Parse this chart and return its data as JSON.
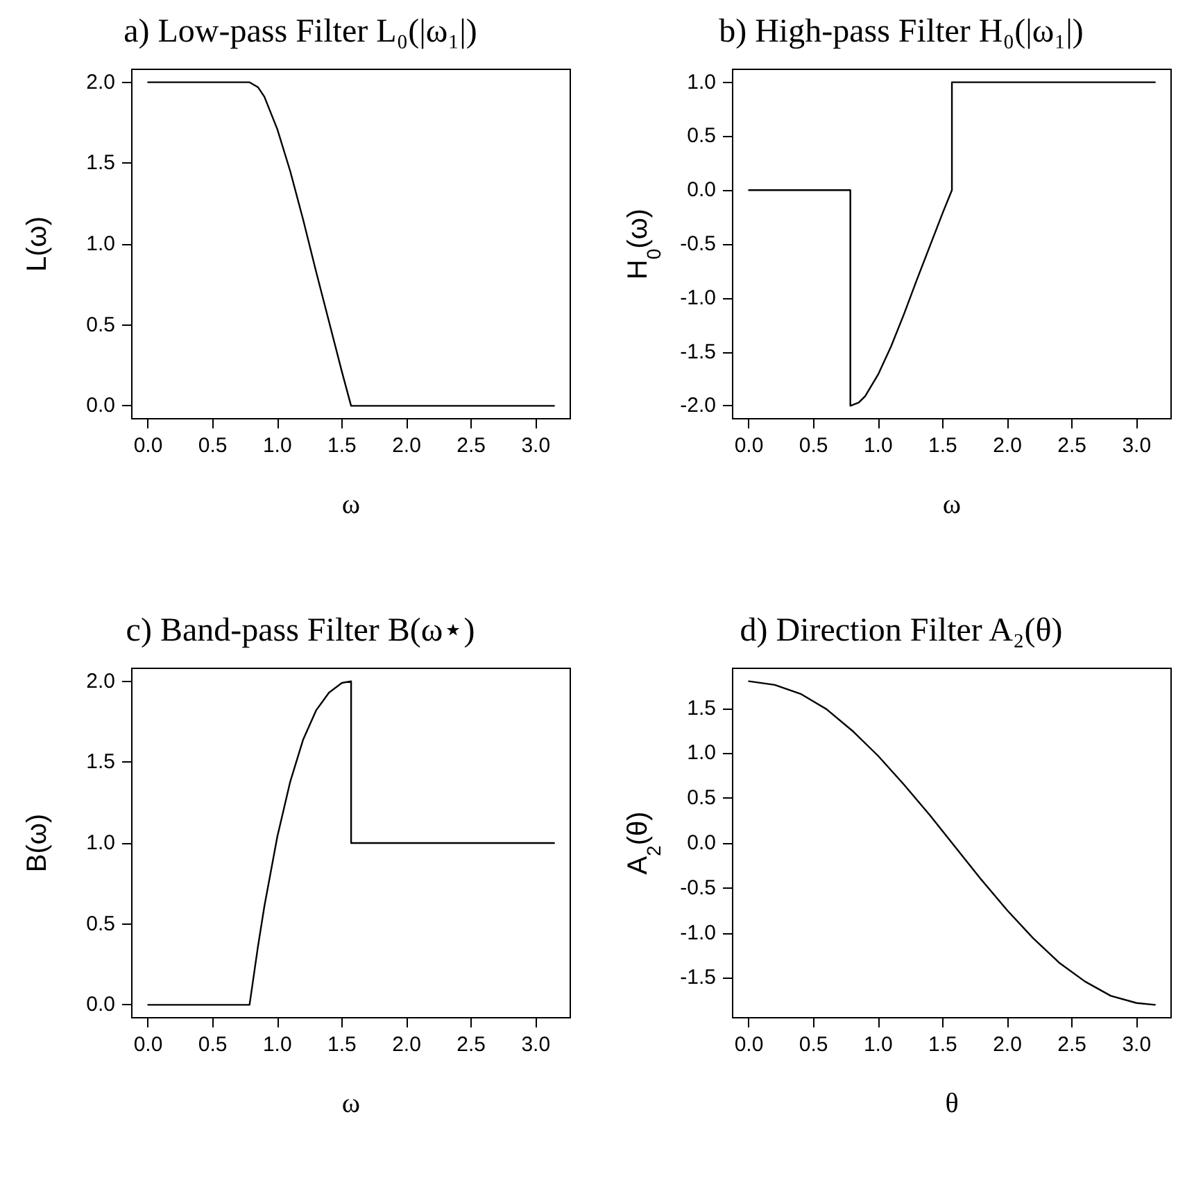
{
  "chart_data": [
    {
      "type": "line",
      "title": "a) Low-pass Filter L₀(|ω₁|)",
      "xlabel": "ω",
      "ylabel": "L(ω)",
      "x": [
        0,
        0.785,
        0.85,
        0.9,
        1.0,
        1.1,
        1.2,
        1.3,
        1.4,
        1.5,
        1.571,
        3.142
      ],
      "values": [
        2,
        2,
        1.97,
        1.91,
        1.71,
        1.45,
        1.15,
        0.83,
        0.52,
        0.21,
        0,
        0
      ],
      "color": "#000000",
      "xlim": [
        -0.126,
        3.267
      ],
      "xticks": [
        {
          "value": 0,
          "label": "0.0"
        },
        0.5,
        {
          "value": 1,
          "label": "1.0"
        },
        1.5,
        {
          "value": 2,
          "label": "2.0"
        },
        2.5,
        {
          "value": 3,
          "label": "3.0"
        }
      ],
      "ylim": [
        -0.08,
        2.08
      ],
      "yticks": [
        {
          "value": 0,
          "label": "0.0"
        },
        0.5,
        {
          "value": 1,
          "label": "1.0"
        },
        1.5,
        {
          "value": 2,
          "label": "2.0"
        }
      ],
      "grid": false,
      "marker": "none",
      "line_style": "solid"
    },
    {
      "type": "line",
      "title": "b) High-pass Filter H₀(|ω₁|)",
      "xlabel": "ω",
      "ylabel": "H$_{0}$(ω)",
      "x": [
        0,
        0.785,
        0.785,
        0.85,
        0.9,
        1.0,
        1.1,
        1.2,
        1.3,
        1.4,
        1.5,
        1.571,
        1.571,
        3.142
      ],
      "values": [
        0,
        0,
        -2,
        -1.97,
        -1.91,
        -1.71,
        -1.45,
        -1.15,
        -0.83,
        -0.52,
        -0.21,
        0,
        1,
        1
      ],
      "color": "#000000",
      "xlim": [
        -0.126,
        3.267
      ],
      "xticks": [
        {
          "value": 0,
          "label": "0.0"
        },
        0.5,
        {
          "value": 1,
          "label": "1.0"
        },
        1.5,
        {
          "value": 2,
          "label": "2.0"
        },
        2.5,
        {
          "value": 3,
          "label": "3.0"
        }
      ],
      "ylim": [
        -2.12,
        1.12
      ],
      "yticks": [
        {
          "value": -2,
          "label": "-2.0"
        },
        -1.5,
        {
          "value": -1,
          "label": "-1.0"
        },
        -0.5,
        {
          "value": 0,
          "label": "0.0"
        },
        0.5,
        {
          "value": 1,
          "label": "1.0"
        }
      ],
      "grid": false,
      "marker": "none",
      "line_style": "solid"
    },
    {
      "type": "line",
      "title": "c) Band-pass Filter B(ω⋆)",
      "xlabel": "ω",
      "ylabel": "B(ω)",
      "x": [
        0,
        0.785,
        0.85,
        0.9,
        1.0,
        1.1,
        1.2,
        1.3,
        1.4,
        1.5,
        1.571,
        1.571,
        3.142
      ],
      "values": [
        0,
        0,
        0.36,
        0.61,
        1.04,
        1.38,
        1.64,
        1.82,
        1.93,
        1.99,
        2,
        1,
        1
      ],
      "color": "#000000",
      "xlim": [
        -0.126,
        3.267
      ],
      "xticks": [
        {
          "value": 0,
          "label": "0.0"
        },
        0.5,
        {
          "value": 1,
          "label": "1.0"
        },
        1.5,
        {
          "value": 2,
          "label": "2.0"
        },
        2.5,
        {
          "value": 3,
          "label": "3.0"
        }
      ],
      "ylim": [
        -0.08,
        2.08
      ],
      "yticks": [
        {
          "value": 0,
          "label": "0.0"
        },
        0.5,
        {
          "value": 1,
          "label": "1.0"
        },
        1.5,
        {
          "value": 2,
          "label": "2.0"
        }
      ],
      "grid": false,
      "marker": "none",
      "line_style": "solid"
    },
    {
      "type": "line",
      "title": "d) Direction Filter A₂(θ)",
      "xlabel": "θ",
      "ylabel": "A$_{2}$(θ)",
      "x": [
        0,
        0.2,
        0.4,
        0.6,
        0.8,
        1.0,
        1.2,
        1.4,
        1.6,
        1.8,
        2.0,
        2.2,
        2.4,
        2.6,
        2.8,
        3.0,
        3.142
      ],
      "values": [
        1.8,
        1.76,
        1.66,
        1.49,
        1.25,
        0.97,
        0.65,
        0.31,
        -0.05,
        -0.41,
        -0.75,
        -1.06,
        -1.33,
        -1.54,
        -1.7,
        -1.78,
        -1.8
      ],
      "color": "#000000",
      "xlim": [
        -0.126,
        3.267
      ],
      "xticks": [
        {
          "value": 0,
          "label": "0.0"
        },
        0.5,
        {
          "value": 1,
          "label": "1.0"
        },
        1.5,
        {
          "value": 2,
          "label": "2.0"
        },
        2.5,
        {
          "value": 3,
          "label": "3.0"
        }
      ],
      "ylim": [
        -1.944,
        1.944
      ],
      "yticks": [
        -1.5,
        {
          "value": -1,
          "label": "-1.0"
        },
        -0.5,
        {
          "value": 0,
          "label": "0.0"
        },
        0.5,
        {
          "value": 1,
          "label": "1.0"
        },
        1.5
      ],
      "grid": false,
      "marker": "none",
      "line_style": "solid"
    }
  ]
}
